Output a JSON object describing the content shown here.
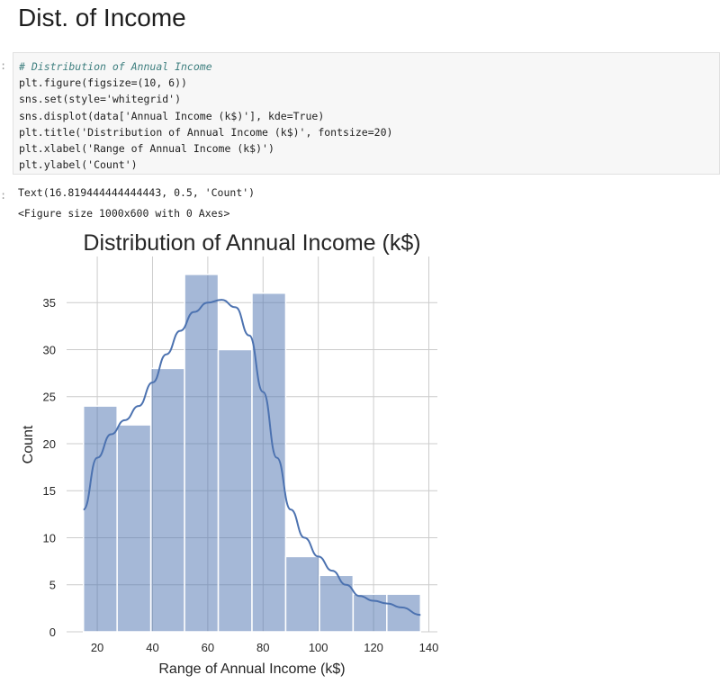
{
  "notebook": {
    "heading": "Dist. of Income",
    "input_prompt": ":",
    "output_prompt": ":",
    "code": {
      "comment": "# Distribution of Annual Income",
      "line2": "plt.figure(figsize=(10, 6))",
      "line3": "sns.set(style='whitegrid')",
      "line4": "sns.displot(data['Annual Income (k$)'], kde=True)",
      "line5": "plt.title('Distribution of Annual Income (k$)', fontsize=20)",
      "line6": "plt.xlabel('Range of Annual Income (k$)')",
      "line7": "plt.ylabel('Count')"
    },
    "output_text_1": "Text(16.819444444444443, 0.5, 'Count')",
    "output_text_2": "<Figure size 1000x600 with 0 Axes>"
  },
  "chart_data": {
    "type": "bar",
    "title": "Distribution of Annual Income (k$)",
    "xlabel": "Range of Annual Income (k$)",
    "ylabel": "Count",
    "bin_edges": [
      15,
      27.2,
      39.4,
      51.6,
      63.8,
      76,
      88.2,
      100.4,
      112.6,
      124.8,
      137
    ],
    "values": [
      24,
      22,
      28,
      38,
      30,
      36,
      8,
      6,
      4,
      4
    ],
    "kde": {
      "x": [
        15,
        20,
        25,
        30,
        35,
        40,
        45,
        50,
        55,
        60,
        65,
        70,
        75,
        80,
        85,
        90,
        95,
        100,
        105,
        110,
        115,
        120,
        125,
        130,
        137
      ],
      "y": [
        13,
        18.5,
        21.0,
        22.5,
        24.0,
        26.5,
        29.5,
        32.0,
        34.0,
        35.0,
        35.3,
        34.5,
        31.5,
        25.5,
        18.5,
        13.0,
        10.0,
        8.0,
        6.5,
        5.0,
        3.8,
        3.3,
        3.0,
        2.6,
        1.8
      ]
    },
    "xticks": [
      20,
      40,
      60,
      80,
      100,
      120,
      140
    ],
    "yticks": [
      0,
      5,
      10,
      15,
      20,
      25,
      30,
      35
    ],
    "xlim": [
      8.9,
      143.1
    ],
    "ylim": [
      0,
      39.9
    ],
    "grid": true,
    "colors": {
      "bar": "#4c72b0",
      "kde": "#4c72b0",
      "grid": "#cccccc"
    }
  }
}
